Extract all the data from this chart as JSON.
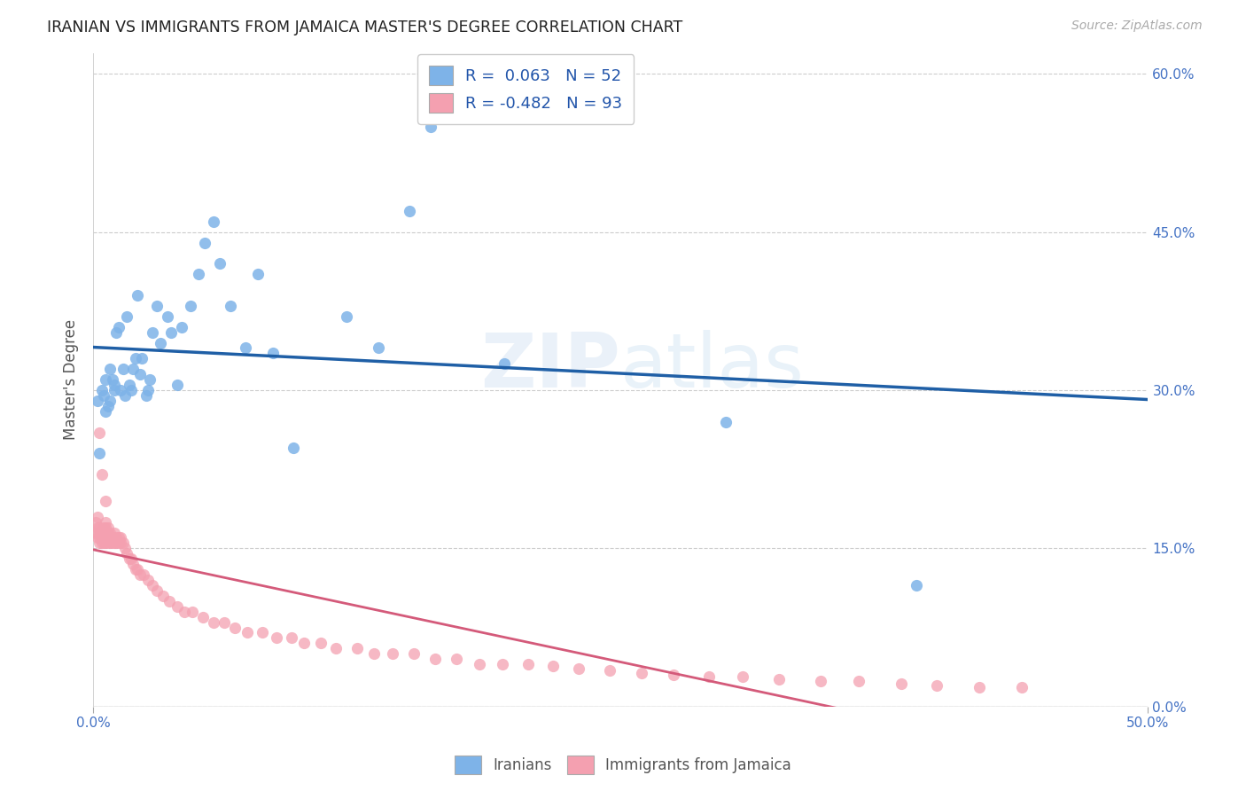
{
  "title": "IRANIAN VS IMMIGRANTS FROM JAMAICA MASTER'S DEGREE CORRELATION CHART",
  "source": "Source: ZipAtlas.com",
  "ylabel": "Master's Degree",
  "xlim": [
    0.0,
    0.5
  ],
  "ylim": [
    0.0,
    0.62
  ],
  "xtick_positions": [
    0.0,
    0.5
  ],
  "xticklabels": [
    "0.0%",
    "50.0%"
  ],
  "ytick_positions": [
    0.0,
    0.15,
    0.3,
    0.45,
    0.6
  ],
  "yticklabels_right": [
    "0.0%",
    "15.0%",
    "30.0%",
    "45.0%",
    "60.0%"
  ],
  "blue_color": "#7EB3E8",
  "pink_color": "#F4A0B0",
  "blue_line_color": "#1F5FA6",
  "pink_line_color": "#D45A7A",
  "blue_R": 0.063,
  "blue_N": 52,
  "pink_R": -0.482,
  "pink_N": 93,
  "legend_label1": "Iranians",
  "legend_label2": "Immigrants from Jamaica",
  "blue_scatter_x": [
    0.002,
    0.003,
    0.004,
    0.005,
    0.006,
    0.006,
    0.007,
    0.008,
    0.008,
    0.009,
    0.01,
    0.01,
    0.011,
    0.012,
    0.013,
    0.014,
    0.015,
    0.016,
    0.017,
    0.018,
    0.019,
    0.02,
    0.021,
    0.022,
    0.023,
    0.025,
    0.026,
    0.027,
    0.028,
    0.03,
    0.032,
    0.035,
    0.037,
    0.04,
    0.042,
    0.046,
    0.05,
    0.053,
    0.057,
    0.06,
    0.065,
    0.072,
    0.078,
    0.085,
    0.095,
    0.12,
    0.135,
    0.15,
    0.16,
    0.195,
    0.3,
    0.39
  ],
  "blue_scatter_y": [
    0.29,
    0.24,
    0.3,
    0.295,
    0.28,
    0.31,
    0.285,
    0.32,
    0.29,
    0.31,
    0.3,
    0.305,
    0.355,
    0.36,
    0.3,
    0.32,
    0.295,
    0.37,
    0.305,
    0.3,
    0.32,
    0.33,
    0.39,
    0.315,
    0.33,
    0.295,
    0.3,
    0.31,
    0.355,
    0.38,
    0.345,
    0.37,
    0.355,
    0.305,
    0.36,
    0.38,
    0.41,
    0.44,
    0.46,
    0.42,
    0.38,
    0.34,
    0.41,
    0.335,
    0.245,
    0.37,
    0.34,
    0.47,
    0.55,
    0.325,
    0.27,
    0.115
  ],
  "pink_scatter_x": [
    0.001,
    0.001,
    0.002,
    0.002,
    0.002,
    0.003,
    0.003,
    0.003,
    0.003,
    0.004,
    0.004,
    0.004,
    0.005,
    0.005,
    0.005,
    0.005,
    0.006,
    0.006,
    0.006,
    0.006,
    0.006,
    0.007,
    0.007,
    0.007,
    0.007,
    0.008,
    0.008,
    0.008,
    0.009,
    0.009,
    0.01,
    0.01,
    0.011,
    0.011,
    0.012,
    0.012,
    0.013,
    0.013,
    0.014,
    0.015,
    0.016,
    0.017,
    0.018,
    0.019,
    0.02,
    0.021,
    0.022,
    0.024,
    0.026,
    0.028,
    0.03,
    0.033,
    0.036,
    0.04,
    0.043,
    0.047,
    0.052,
    0.057,
    0.062,
    0.067,
    0.073,
    0.08,
    0.087,
    0.094,
    0.1,
    0.108,
    0.115,
    0.125,
    0.133,
    0.142,
    0.152,
    0.162,
    0.172,
    0.183,
    0.194,
    0.206,
    0.218,
    0.23,
    0.245,
    0.26,
    0.275,
    0.292,
    0.308,
    0.325,
    0.345,
    0.363,
    0.383,
    0.4,
    0.42,
    0.44,
    0.003,
    0.004,
    0.006
  ],
  "pink_scatter_y": [
    0.165,
    0.175,
    0.16,
    0.17,
    0.18,
    0.155,
    0.16,
    0.165,
    0.17,
    0.155,
    0.16,
    0.165,
    0.155,
    0.16,
    0.165,
    0.17,
    0.155,
    0.16,
    0.165,
    0.17,
    0.175,
    0.155,
    0.16,
    0.165,
    0.17,
    0.155,
    0.16,
    0.165,
    0.155,
    0.16,
    0.155,
    0.165,
    0.155,
    0.16,
    0.155,
    0.16,
    0.155,
    0.16,
    0.155,
    0.15,
    0.145,
    0.14,
    0.14,
    0.135,
    0.13,
    0.13,
    0.125,
    0.125,
    0.12,
    0.115,
    0.11,
    0.105,
    0.1,
    0.095,
    0.09,
    0.09,
    0.085,
    0.08,
    0.08,
    0.075,
    0.07,
    0.07,
    0.065,
    0.065,
    0.06,
    0.06,
    0.055,
    0.055,
    0.05,
    0.05,
    0.05,
    0.045,
    0.045,
    0.04,
    0.04,
    0.04,
    0.038,
    0.036,
    0.034,
    0.032,
    0.03,
    0.028,
    0.028,
    0.026,
    0.024,
    0.024,
    0.022,
    0.02,
    0.018,
    0.018,
    0.26,
    0.22,
    0.195
  ]
}
